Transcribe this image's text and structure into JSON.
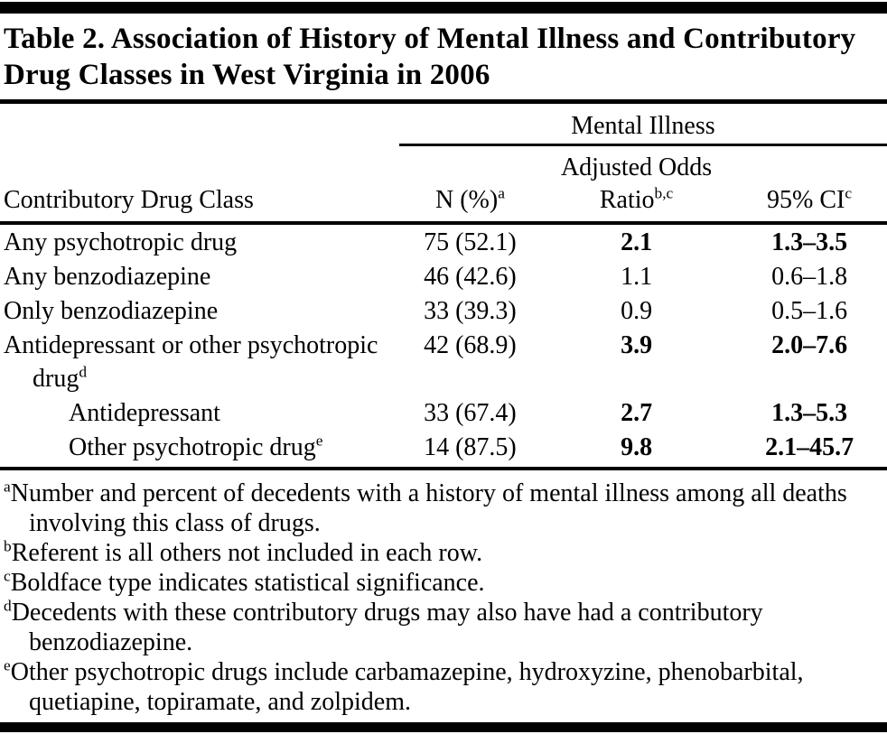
{
  "page": {
    "title": "Table 2. Association of History of Mental Illness and Contributory Drug Classes in West Virginia in 2006"
  },
  "table": {
    "spanner": "Mental Illness",
    "columns": [
      {
        "label": "Contributory Drug Class",
        "sup": ""
      },
      {
        "label": "N (%)",
        "sup": "a"
      },
      {
        "label": "Adjusted Odds Ratio",
        "sup": "b,c"
      },
      {
        "label": "95% CI",
        "sup": "c"
      }
    ],
    "rows": [
      {
        "label": "Any psychotropic drug",
        "sup": "",
        "n_pct": "75 (52.1)",
        "adjusted_odds_ratio": "2.1",
        "ci_95": "1.3–3.5",
        "significant": true,
        "indent": 0
      },
      {
        "label": "Any benzodiazepine",
        "sup": "",
        "n_pct": "46 (42.6)",
        "adjusted_odds_ratio": "1.1",
        "ci_95": "0.6–1.8",
        "significant": false,
        "indent": 0
      },
      {
        "label": "Only benzodiazepine",
        "sup": "",
        "n_pct": "33 (39.3)",
        "adjusted_odds_ratio": "0.9",
        "ci_95": "0.5–1.6",
        "significant": false,
        "indent": 0
      },
      {
        "label": "Antidepressant or other psychotropic drug",
        "sup": "d",
        "n_pct": "42 (68.9)",
        "adjusted_odds_ratio": "3.9",
        "ci_95": "2.0–7.6",
        "significant": true,
        "indent": 0
      },
      {
        "label": "Antidepressant",
        "sup": "",
        "n_pct": "33 (67.4)",
        "adjusted_odds_ratio": "2.7",
        "ci_95": "1.3–5.3",
        "significant": true,
        "indent": 1
      },
      {
        "label": "Other psychotropic drug",
        "sup": "e",
        "n_pct": "14 (87.5)",
        "adjusted_odds_ratio": "9.8",
        "ci_95": "2.1–45.7",
        "significant": true,
        "indent": 1
      }
    ],
    "footnotes": [
      {
        "marker": "a",
        "text": "Number and percent of decedents with a history of mental illness among all deaths involving this class of drugs."
      },
      {
        "marker": "b",
        "text": "Referent is all others not included in each row."
      },
      {
        "marker": "c",
        "text": "Boldface type indicates statistical significance."
      },
      {
        "marker": "d",
        "text": "Decedents with these contributory drugs may also have had a contributory benzodiazepine."
      },
      {
        "marker": "e",
        "text": "Other psychotropic drugs include carbamazepine, hydroxyzine, phenobarbital, quetiapine, topiramate, and zolpidem."
      }
    ]
  }
}
